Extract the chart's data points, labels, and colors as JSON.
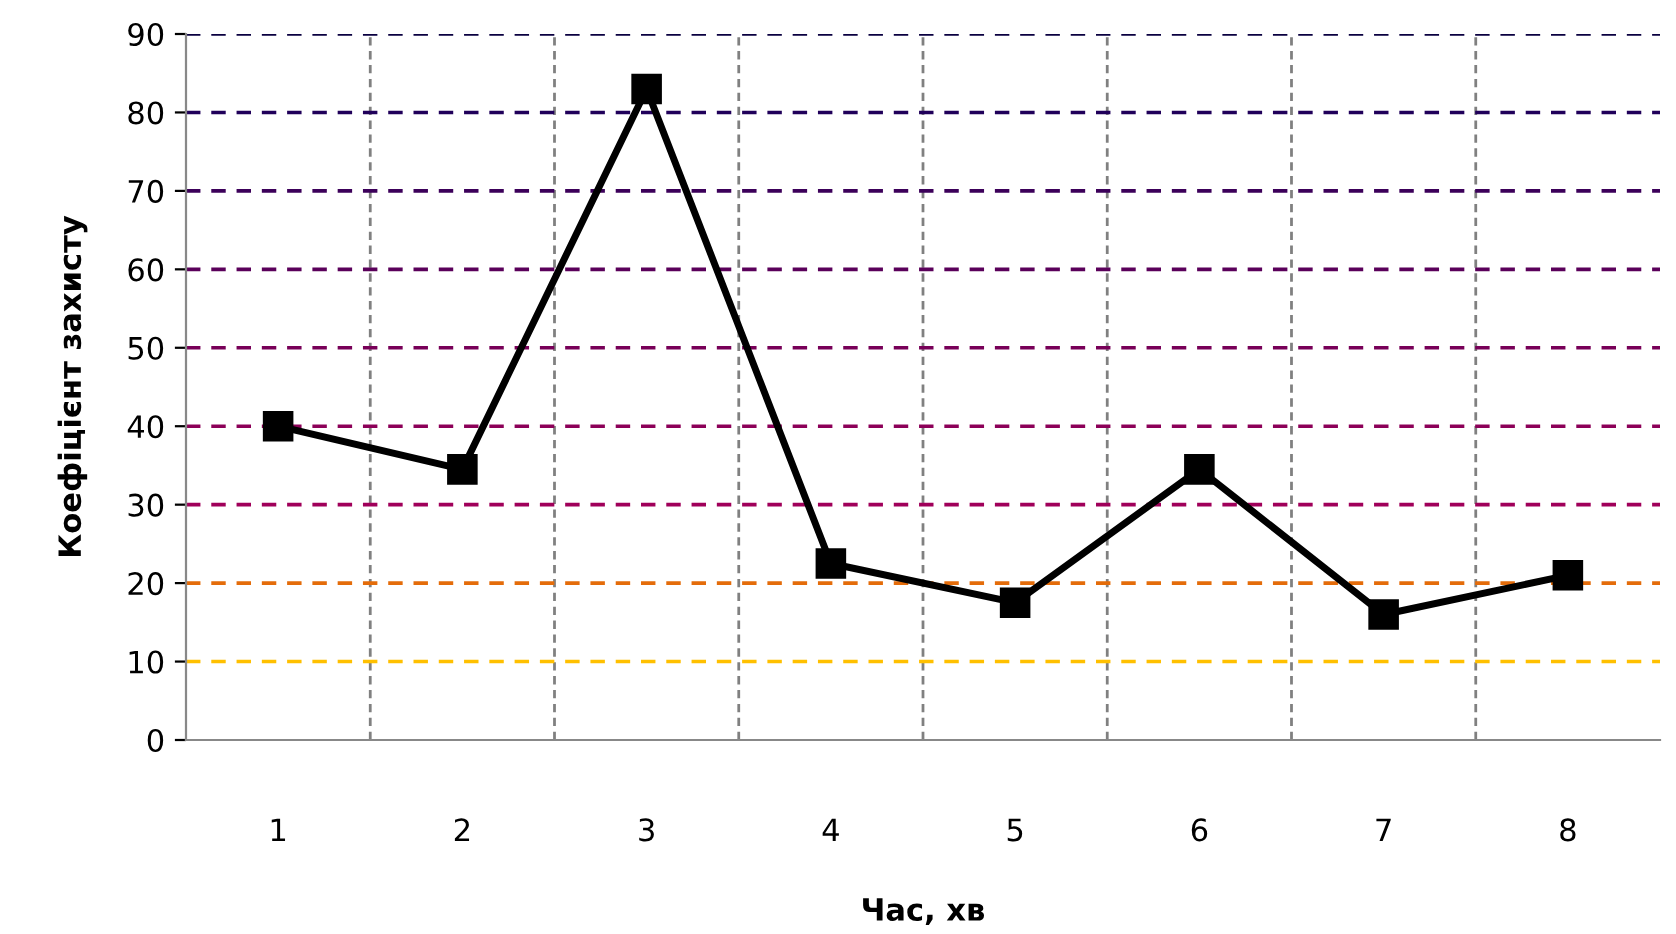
{
  "chart_data": {
    "type": "line",
    "xlabel": "Час, хв",
    "ylabel": "Коефіцієнт захисту",
    "categories": [
      "1",
      "2",
      "3",
      "4",
      "5",
      "6",
      "7",
      "8"
    ],
    "series": [
      {
        "color": "#000000",
        "values": [
          40,
          34.5,
          83,
          22.5,
          17.5,
          34.5,
          16,
          21
        ]
      }
    ],
    "marker": "square",
    "line_style": "solid",
    "ylim": [
      0,
      90
    ],
    "yticks": [
      0,
      10,
      20,
      30,
      40,
      50,
      60,
      70,
      80,
      90
    ],
    "grid": "x",
    "ref_lines": [
      {
        "axis": "y",
        "value": 10,
        "color": "#ffc000",
        "line_style": "dashed"
      },
      {
        "axis": "y",
        "value": 20,
        "color": "#e46c0a",
        "line_style": "dashed"
      },
      {
        "axis": "y",
        "value": 30,
        "color": "#a0005a",
        "line_style": "dashed"
      },
      {
        "axis": "y",
        "value": 40,
        "color": "#8c0058",
        "line_style": "dashed"
      },
      {
        "axis": "y",
        "value": 50,
        "color": "#780058",
        "line_style": "dashed"
      },
      {
        "axis": "y",
        "value": 60,
        "color": "#5a005a",
        "line_style": "dashed"
      },
      {
        "axis": "y",
        "value": 70,
        "color": "#3c005a",
        "line_style": "dashed"
      },
      {
        "axis": "y",
        "value": 80,
        "color": "#20005a",
        "line_style": "dashed"
      },
      {
        "axis": "y",
        "value": 90,
        "color": "#0a0040",
        "line_style": "dashed"
      }
    ]
  }
}
